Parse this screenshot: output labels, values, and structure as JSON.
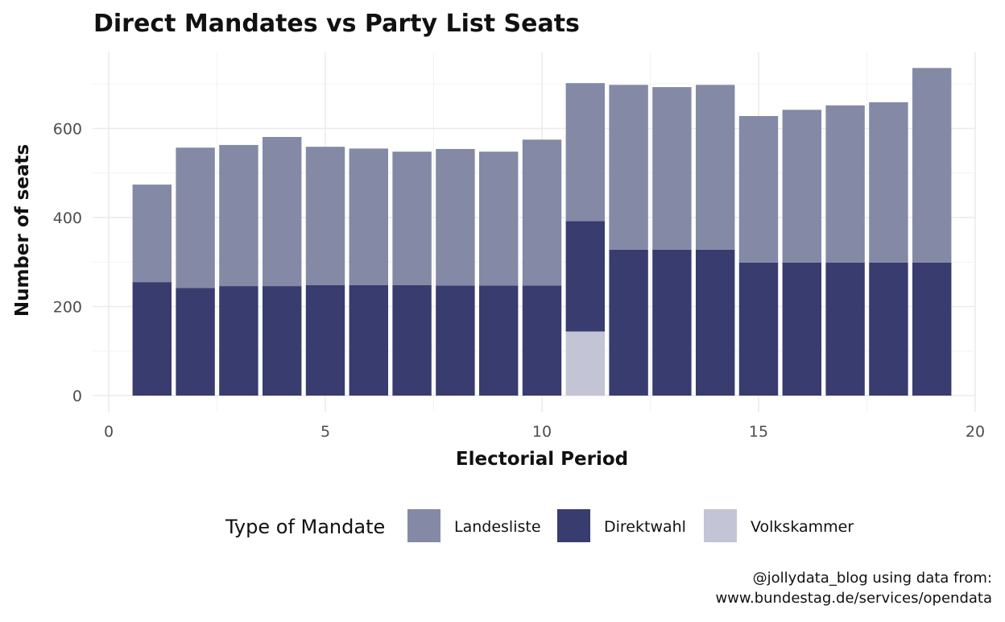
{
  "chart_data": {
    "type": "bar",
    "stacked": true,
    "title": "Direct Mandates vs Party List Seats",
    "xlabel": "Electorial Period",
    "ylabel": "Number of seats",
    "xlim": [
      0,
      20
    ],
    "ylim": [
      0,
      750
    ],
    "x_ticks": [
      "0",
      "5",
      "10",
      "15",
      "20"
    ],
    "y_ticks": [
      "0",
      "200",
      "400",
      "600"
    ],
    "grid": true,
    "legend": {
      "title": "Type of Mandate",
      "position": "bottom"
    },
    "x": [
      1,
      2,
      3,
      4,
      5,
      6,
      7,
      8,
      9,
      10,
      11,
      12,
      13,
      14,
      15,
      16,
      17,
      18,
      19
    ],
    "series": [
      {
        "name": "Volkskammer",
        "color": "#c3c4d5",
        "values": [
          0,
          0,
          0,
          0,
          0,
          0,
          0,
          0,
          0,
          0,
          144,
          0,
          0,
          0,
          0,
          0,
          0,
          0,
          0
        ]
      },
      {
        "name": "Direktwahl",
        "color": "#383c6e",
        "values": [
          255,
          242,
          246,
          246,
          248,
          248,
          248,
          247,
          247,
          247,
          248,
          328,
          328,
          328,
          299,
          299,
          299,
          299,
          299
        ]
      },
      {
        "name": "Landesliste",
        "color": "#8489a6",
        "values": [
          219,
          315,
          317,
          335,
          311,
          307,
          300,
          307,
          301,
          328,
          310,
          370,
          365,
          370,
          329,
          343,
          353,
          360,
          437
        ]
      }
    ],
    "legend_order": [
      "Landesliste",
      "Direktwahl",
      "Volkskammer"
    ]
  },
  "caption": {
    "line1": "@jollydata_blog using data from:",
    "line2": "www.bundestag.de/services/opendata"
  }
}
